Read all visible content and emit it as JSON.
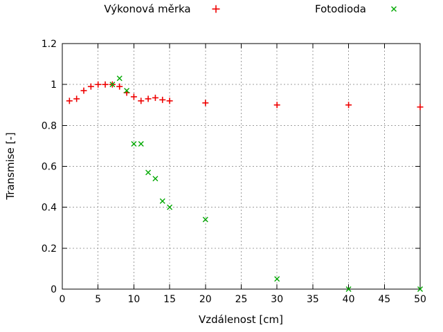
{
  "page": {
    "background": "#ffffff",
    "text_color": "#000000"
  },
  "chart_data": {
    "type": "scatter",
    "title": "",
    "xlabel": "Vzdálenost [cm]",
    "ylabel": "Transmise [-]",
    "xlim": [
      0,
      50
    ],
    "ylim": [
      0,
      1.2
    ],
    "xticks": [
      0,
      5,
      10,
      15,
      20,
      25,
      30,
      35,
      40,
      45,
      50
    ],
    "xtick_labels": [
      "0",
      "5",
      "10",
      "15",
      "20",
      "25",
      "30",
      "35",
      "40",
      "45",
      "50"
    ],
    "yticks": [
      0,
      0.2,
      0.4,
      0.6,
      0.8,
      1,
      1.2
    ],
    "ytick_labels": [
      "0",
      "0.2",
      "0.4",
      "0.6",
      "0.8",
      "1",
      "1.2"
    ],
    "grid": true,
    "grid_style": "dotted",
    "legend_position": "top-outside",
    "colors": {
      "grid": "#9c9c9c",
      "axis": "#000000"
    },
    "series": [
      {
        "name": "Výkonová měrka",
        "marker": "plus",
        "color": "#ee0000",
        "points": [
          [
            1,
            0.92
          ],
          [
            2,
            0.93
          ],
          [
            3,
            0.97
          ],
          [
            4,
            0.99
          ],
          [
            5,
            1.0
          ],
          [
            6,
            1.0
          ],
          [
            7,
            1.0
          ],
          [
            8,
            0.99
          ],
          [
            9,
            0.96
          ],
          [
            10,
            0.94
          ],
          [
            11,
            0.92
          ],
          [
            12,
            0.93
          ],
          [
            13,
            0.935
          ],
          [
            14,
            0.925
          ],
          [
            15,
            0.92
          ],
          [
            20,
            0.91
          ],
          [
            30,
            0.9
          ],
          [
            40,
            0.9
          ],
          [
            50,
            0.89
          ]
        ]
      },
      {
        "name": "Fotodioda",
        "marker": "x",
        "color": "#00a800",
        "points": [
          [
            7,
            1.0
          ],
          [
            8,
            1.03
          ],
          [
            9,
            0.97
          ],
          [
            10,
            0.71
          ],
          [
            11,
            0.71
          ],
          [
            12,
            0.57
          ],
          [
            13,
            0.54
          ],
          [
            14,
            0.43
          ],
          [
            15,
            0.4
          ],
          [
            20,
            0.34
          ],
          [
            30,
            0.05
          ],
          [
            40,
            0.0
          ],
          [
            50,
            0.0
          ]
        ]
      }
    ]
  }
}
